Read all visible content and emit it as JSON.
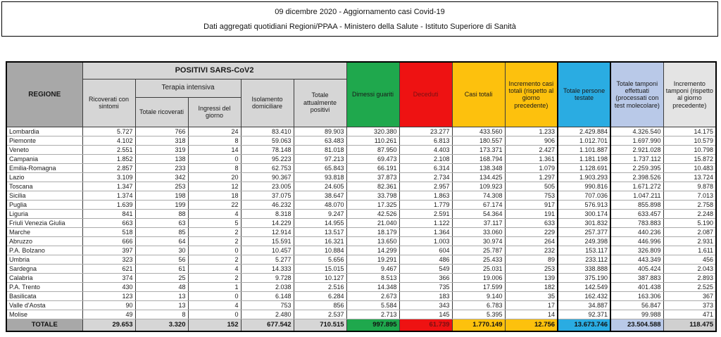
{
  "title": {
    "line1": "09 dicembre 2020 - Aggiornamento casi Covid-19",
    "line2": "Dati aggregati quotidiani Regioni/PPAA - Ministero della Salute - Istituto Superiore di Sanità"
  },
  "colors": {
    "green": "#1fa84d",
    "red": "#ee1212",
    "darkred": "#7a1012",
    "yellow": "#fdc10d",
    "blue": "#2aace2",
    "lavender": "#b9c9e8",
    "headgray": "#a8a8a8",
    "subheader": "#d6d6d6",
    "lightgray": "#e4e4e4",
    "lightgray2": "#d0d0d0"
  },
  "table": {
    "headers": {
      "regione": "REGIONE",
      "positivi_group": "POSITIVI SARS-CoV2",
      "terapia_group": "Terapia intensiva",
      "ricoverati": "Ricoverati con sintomi",
      "totale_ricoverati": "Totale ricoverati",
      "ingressi": "Ingressi del giorno",
      "isolamento": "Isolamento domiciliare",
      "attualmente_positivi": "Totale attualmente positivi",
      "dimessi": "Dimessi guariti",
      "deceduti": "Deceduti",
      "casi_totali": "Casi totali",
      "incremento_casi": "Incremento casi totali (rispetto al giorno precedente)",
      "persone_testate": "Totale persone testate",
      "tamponi": "Totale tamponi effettuati (processati con test molecolare)",
      "incremento_tamponi": "Incremento tamponi (rispetto al giorno precedente)"
    },
    "rows": [
      [
        "Lombardia",
        "5.727",
        "766",
        "24",
        "83.410",
        "89.903",
        "320.380",
        "23.277",
        "433.560",
        "1.233",
        "2.429.884",
        "4.326.540",
        "14.175"
      ],
      [
        "Piemonte",
        "4.102",
        "318",
        "8",
        "59.063",
        "63.483",
        "110.261",
        "6.813",
        "180.557",
        "906",
        "1.012.701",
        "1.697.990",
        "10.579"
      ],
      [
        "Veneto",
        "2.551",
        "319",
        "14",
        "78.148",
        "81.018",
        "87.950",
        "4.403",
        "173.371",
        "2.427",
        "1.101.887",
        "2.921.028",
        "10.798"
      ],
      [
        "Campania",
        "1.852",
        "138",
        "0",
        "95.223",
        "97.213",
        "69.473",
        "2.108",
        "168.794",
        "1.361",
        "1.181.198",
        "1.737.112",
        "15.872"
      ],
      [
        "Emilia-Romagna",
        "2.857",
        "233",
        "8",
        "62.753",
        "65.843",
        "66.191",
        "6.314",
        "138.348",
        "1.079",
        "1.128.691",
        "2.259.395",
        "10.483"
      ],
      [
        "Lazio",
        "3.109",
        "342",
        "20",
        "90.367",
        "93.818",
        "37.873",
        "2.734",
        "134.425",
        "1.297",
        "1.903.293",
        "2.398.526",
        "13.724"
      ],
      [
        "Toscana",
        "1.347",
        "253",
        "12",
        "23.005",
        "24.605",
        "82.361",
        "2.957",
        "109.923",
        "505",
        "990.816",
        "1.671.272",
        "9.878"
      ],
      [
        "Sicilia",
        "1.374",
        "198",
        "18",
        "37.075",
        "38.647",
        "33.798",
        "1.863",
        "74.308",
        "753",
        "707.036",
        "1.047.211",
        "7.013"
      ],
      [
        "Puglia",
        "1.639",
        "199",
        "22",
        "46.232",
        "48.070",
        "17.325",
        "1.779",
        "67.174",
        "917",
        "576.913",
        "855.898",
        "2.758"
      ],
      [
        "Liguria",
        "841",
        "88",
        "4",
        "8.318",
        "9.247",
        "42.526",
        "2.591",
        "54.364",
        "191",
        "300.174",
        "633.457",
        "2.248"
      ],
      [
        "Friuli Venezia Giulia",
        "663",
        "63",
        "5",
        "14.229",
        "14.955",
        "21.040",
        "1.122",
        "37.117",
        "633",
        "301.832",
        "783.883",
        "5.190"
      ],
      [
        "Marche",
        "518",
        "85",
        "2",
        "12.914",
        "13.517",
        "18.179",
        "1.364",
        "33.060",
        "229",
        "257.377",
        "440.236",
        "2.087"
      ],
      [
        "Abruzzo",
        "666",
        "64",
        "2",
        "15.591",
        "16.321",
        "13.650",
        "1.003",
        "30.974",
        "264",
        "249.398",
        "446.996",
        "2.931"
      ],
      [
        "P.A. Bolzano",
        "397",
        "30",
        "0",
        "10.457",
        "10.884",
        "14.299",
        "604",
        "25.787",
        "232",
        "153.117",
        "326.809",
        "1.611"
      ],
      [
        "Umbria",
        "323",
        "56",
        "2",
        "5.277",
        "5.656",
        "19.291",
        "486",
        "25.433",
        "89",
        "233.112",
        "443.349",
        "456"
      ],
      [
        "Sardegna",
        "621",
        "61",
        "4",
        "14.333",
        "15.015",
        "9.467",
        "549",
        "25.031",
        "253",
        "338.888",
        "405.424",
        "2.043"
      ],
      [
        "Calabria",
        "374",
        "25",
        "2",
        "9.728",
        "10.127",
        "8.513",
        "366",
        "19.006",
        "139",
        "375.190",
        "387.883",
        "2.893"
      ],
      [
        "P.A. Trento",
        "430",
        "48",
        "1",
        "2.038",
        "2.516",
        "14.348",
        "735",
        "17.599",
        "182",
        "142.549",
        "401.438",
        "2.525"
      ],
      [
        "Basilicata",
        "123",
        "13",
        "0",
        "6.148",
        "6.284",
        "2.673",
        "183",
        "9.140",
        "35",
        "162.432",
        "163.306",
        "367"
      ],
      [
        "Valle d'Aosta",
        "90",
        "13",
        "4",
        "753",
        "856",
        "5.584",
        "343",
        "6.783",
        "17",
        "34.887",
        "56.847",
        "373"
      ],
      [
        "Molise",
        "49",
        "8",
        "0",
        "2.480",
        "2.537",
        "2.713",
        "145",
        "5.395",
        "14",
        "92.371",
        "99.988",
        "471"
      ]
    ],
    "totale": {
      "label": "TOTALE",
      "values": [
        "29.653",
        "3.320",
        "152",
        "677.542",
        "710.515",
        "997.895",
        "61.739",
        "1.770.149",
        "12.756",
        "13.673.746",
        "23.504.588",
        "118.475"
      ]
    }
  }
}
